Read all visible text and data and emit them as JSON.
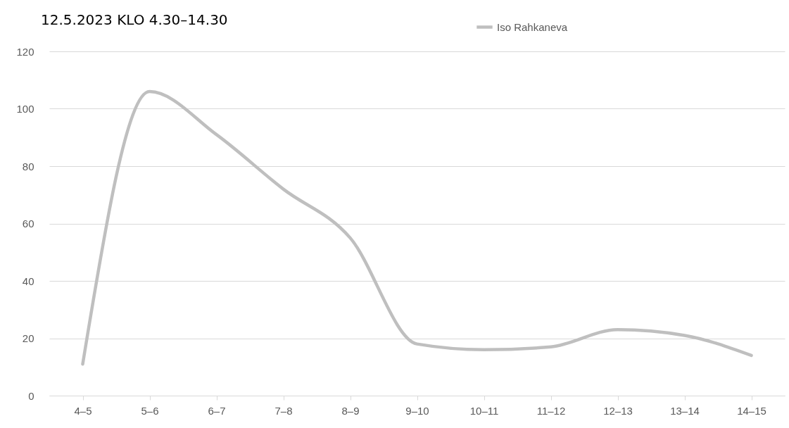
{
  "chart_data": {
    "type": "line",
    "title": "12.5.2023 KLO 4.30–14.30",
    "categories": [
      "4–5",
      "5–6",
      "6–7",
      "7–8",
      "8–9",
      "9–10",
      "10–11",
      "11–12",
      "12–13",
      "13–14",
      "14–15"
    ],
    "series": [
      {
        "name": "Iso Rahkaneva",
        "color": "#bfbfbf",
        "values": [
          11,
          106,
          91,
          72,
          55,
          18,
          16,
          17,
          23,
          21,
          14
        ]
      }
    ],
    "ylim": [
      0,
      120
    ],
    "yticks": [
      0,
      20,
      40,
      60,
      80,
      100,
      120
    ],
    "grid": "y",
    "legend": "top right",
    "marker": "none",
    "line_style": "solid"
  }
}
